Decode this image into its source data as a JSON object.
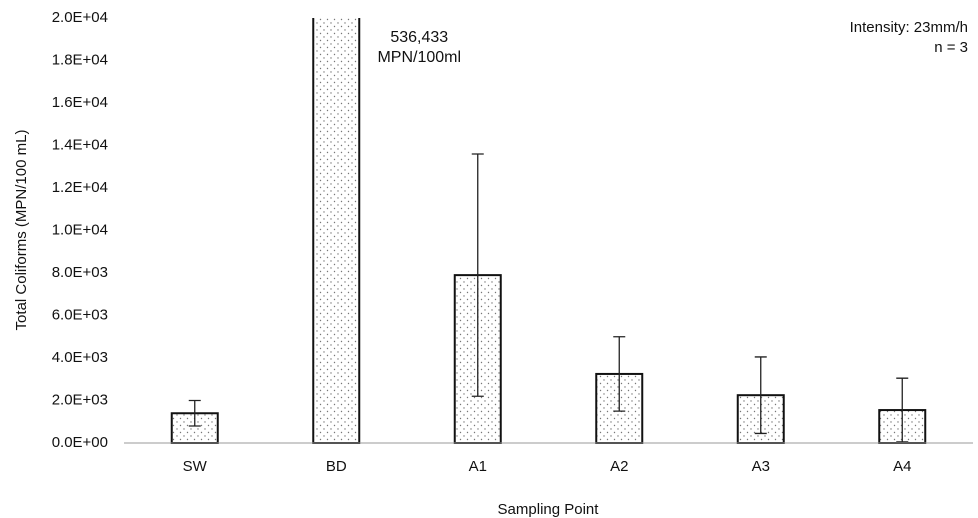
{
  "chart_data": {
    "type": "bar",
    "x_label": "Sampling Point",
    "y_label": "Total Coliforms (MPN/100 mL)",
    "annotations": [
      "Intensity: 23mm/h",
      "n = 3"
    ],
    "categories": [
      "SW",
      "BD",
      "A1",
      "A2",
      "A3",
      "A4"
    ],
    "values": [
      1400,
      536433,
      7900,
      3250,
      2250,
      1550
    ],
    "errors": [
      600,
      null,
      5700,
      1750,
      1800,
      1500
    ],
    "value_labels": [
      null,
      "536,433",
      null,
      null,
      null,
      null
    ],
    "value_label_unit": "MPN/100ml",
    "color": "#ffffff",
    "ylim": [
      0,
      20000
    ],
    "yticks": [
      {
        "value": 0,
        "label": "0.0E+00"
      },
      {
        "value": 2000,
        "label": "2.0E+03"
      },
      {
        "value": 4000,
        "label": "4.0E+03"
      },
      {
        "value": 6000,
        "label": "6.0E+03"
      },
      {
        "value": 8000,
        "label": "8.0E+03"
      },
      {
        "value": 10000,
        "label": "1.0E+04"
      },
      {
        "value": 12000,
        "label": "1.2E+04"
      },
      {
        "value": 14000,
        "label": "1.4E+04"
      },
      {
        "value": 16000,
        "label": "1.6E+04"
      },
      {
        "value": 18000,
        "label": "1.8E+04"
      },
      {
        "value": 20000,
        "label": "2.0E+04"
      }
    ],
    "grid": false
  }
}
